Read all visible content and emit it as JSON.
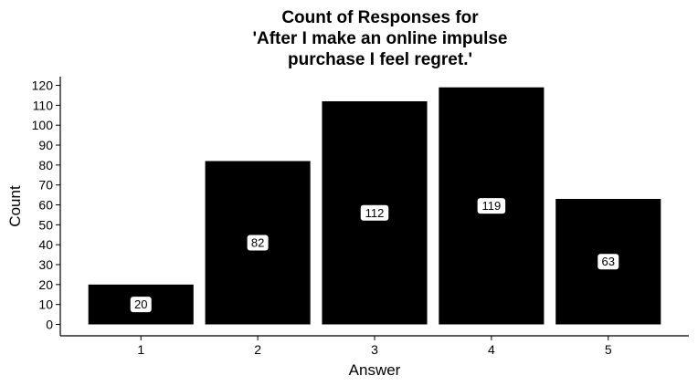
{
  "chart_data": {
    "type": "bar",
    "title_lines": [
      "Count of Responses for",
      "'After I make an online impulse",
      "purchase I feel regret.'"
    ],
    "xlabel": "Answer",
    "ylabel": "Count",
    "categories": [
      "1",
      "2",
      "3",
      "4",
      "5"
    ],
    "values": [
      20,
      82,
      112,
      119,
      63
    ],
    "data_labels": [
      "20",
      "82",
      "112",
      "119",
      "63"
    ],
    "ylim": [
      -5,
      125
    ],
    "yticks": [
      0,
      10,
      20,
      30,
      40,
      50,
      60,
      70,
      80,
      90,
      100,
      110,
      120
    ],
    "bar_color": "#000000",
    "label_bg_color": "#ffffff",
    "grid": false,
    "legend": "none"
  }
}
